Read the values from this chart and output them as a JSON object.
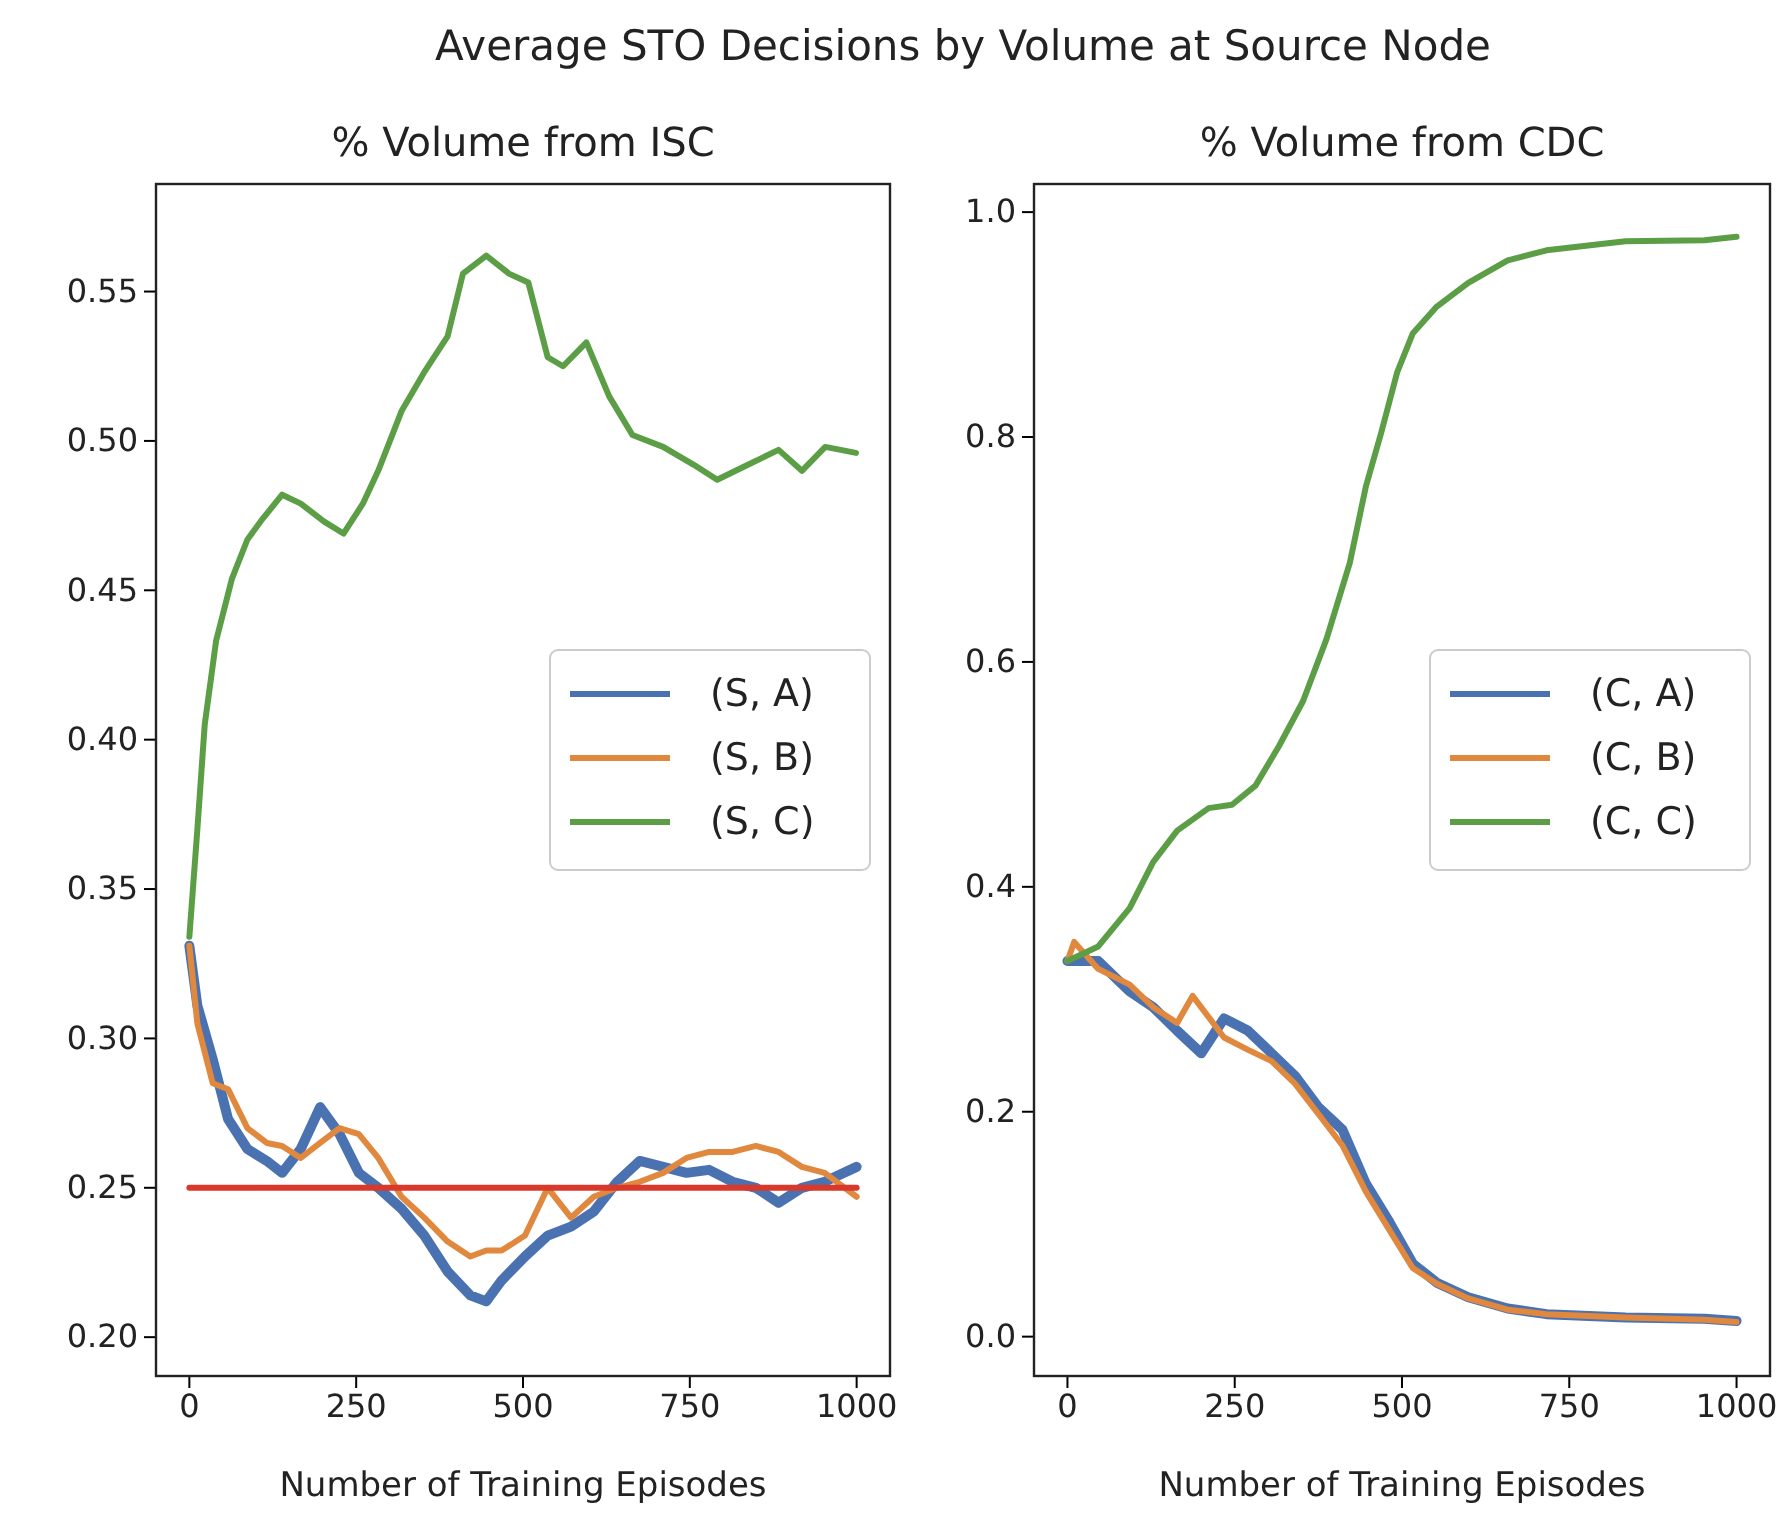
{
  "chart_data": [
    {
      "type": "line",
      "title": "% Volume from ISC",
      "xlabel": "Number of Training Episodes",
      "annotations": [
        "Average STO Decisions by Volume at Source Node"
      ],
      "legend": "right",
      "grid": false,
      "line_style": "solid",
      "marker": "none",
      "xlim": [
        -50,
        1050
      ],
      "xticks": [
        0,
        250,
        500,
        750,
        1000
      ],
      "ylim": [
        0.187,
        0.586
      ],
      "yticks": [
        {
          "value": 0.2,
          "label": "0.20"
        },
        {
          "value": 0.25,
          "label": "0.25"
        },
        {
          "value": 0.3,
          "label": "0.30"
        },
        {
          "value": 0.35,
          "label": "0.35"
        },
        {
          "value": 0.4,
          "label": "0.40"
        },
        {
          "value": 0.45,
          "label": "0.45"
        },
        {
          "value": 0.5,
          "label": "0.50"
        },
        {
          "value": 0.55,
          "label": "0.55"
        }
      ],
      "series": [
        {
          "name": "(S, A)",
          "color": "#4a72b0",
          "x": [
            0,
            12,
            35,
            58,
            87,
            116,
            139,
            167,
            196,
            225,
            254,
            283,
            318,
            352,
            387,
            421,
            445,
            468,
            503,
            537,
            572,
            606,
            641,
            675,
            710,
            745,
            779,
            814,
            849,
            883,
            918,
            952,
            1000
          ],
          "values": [
            0.331,
            0.311,
            0.293,
            0.273,
            0.263,
            0.259,
            0.255,
            0.263,
            0.277,
            0.268,
            0.255,
            0.25,
            0.243,
            0.234,
            0.222,
            0.214,
            0.212,
            0.219,
            0.227,
            0.234,
            0.237,
            0.242,
            0.252,
            0.259,
            0.257,
            0.255,
            0.256,
            0.252,
            0.25,
            0.245,
            0.25,
            0.252,
            0.257
          ]
        },
        {
          "name": "(S, B)",
          "color": "#e0883e",
          "x": [
            0,
            12,
            35,
            58,
            87,
            116,
            139,
            167,
            196,
            225,
            254,
            283,
            318,
            352,
            387,
            421,
            445,
            468,
            503,
            537,
            572,
            606,
            641,
            675,
            710,
            745,
            779,
            814,
            849,
            883,
            918,
            952,
            1000
          ],
          "values": [
            0.331,
            0.305,
            0.285,
            0.283,
            0.27,
            0.265,
            0.264,
            0.26,
            0.265,
            0.27,
            0.268,
            0.26,
            0.247,
            0.24,
            0.232,
            0.227,
            0.229,
            0.229,
            0.234,
            0.25,
            0.24,
            0.247,
            0.25,
            0.252,
            0.255,
            0.26,
            0.262,
            0.262,
            0.264,
            0.262,
            0.257,
            0.255,
            0.247
          ]
        },
        {
          "name": "(S, C)",
          "color": "#5b9e45",
          "x": [
            0,
            12,
            23,
            40,
            64,
            87,
            110,
            139,
            167,
            202,
            231,
            260,
            283,
            318,
            352,
            387,
            410,
            445,
            479,
            508,
            537,
            560,
            595,
            629,
            664,
            710,
            756,
            791,
            837,
            883,
            918,
            953,
            999
          ],
          "values": [
            0.334,
            0.37,
            0.405,
            0.433,
            0.454,
            0.467,
            0.474,
            0.482,
            0.479,
            0.473,
            0.469,
            0.479,
            0.49,
            0.51,
            0.523,
            0.535,
            0.556,
            0.562,
            0.556,
            0.553,
            0.528,
            0.525,
            0.533,
            0.515,
            0.502,
            0.498,
            0.492,
            0.487,
            0.492,
            0.497,
            0.49,
            0.498,
            0.496
          ]
        },
        {
          "color": "#d8392b",
          "x": [
            0,
            1000
          ],
          "values": [
            0.25,
            0.25
          ]
        }
      ]
    },
    {
      "type": "line",
      "title": "% Volume from CDC",
      "xlabel": "Number of Training Episodes",
      "legend": "right",
      "grid": false,
      "line_style": "solid",
      "marker": "none",
      "xlim": [
        -50,
        1050
      ],
      "xticks": [
        0,
        250,
        500,
        750,
        1000
      ],
      "ylim": [
        -0.035,
        1.025
      ],
      "yticks": [
        {
          "value": 0,
          "label": "0.0"
        },
        {
          "value": 0.2,
          "label": "0.2"
        },
        {
          "value": 0.4,
          "label": "0.4"
        },
        {
          "value": 0.6,
          "label": "0.6"
        },
        {
          "value": 0.8,
          "label": "0.8"
        },
        {
          "value": 1,
          "label": "1.0"
        }
      ],
      "series": [
        {
          "name": "(C, A)",
          "color": "#4a72b0",
          "x": [
            0,
            46,
            93,
            128,
            164,
            200,
            234,
            270,
            305,
            340,
            375,
            411,
            446,
            481,
            516,
            552,
            599,
            658,
            716,
            834,
            952,
            1000
          ],
          "values": [
            0.334,
            0.334,
            0.307,
            0.293,
            0.272,
            0.252,
            0.283,
            0.272,
            0.252,
            0.232,
            0.204,
            0.184,
            0.136,
            0.102,
            0.065,
            0.048,
            0.035,
            0.025,
            0.02,
            0.017,
            0.016,
            0.014
          ]
        },
        {
          "name": "(C, B)",
          "color": "#e0883e",
          "x": [
            0,
            10,
            46,
            93,
            128,
            164,
            187,
            234,
            270,
            305,
            340,
            375,
            411,
            446,
            481,
            516,
            552,
            599,
            658,
            716,
            834,
            952,
            1000
          ],
          "values": [
            0.334,
            0.351,
            0.327,
            0.313,
            0.293,
            0.279,
            0.303,
            0.266,
            0.255,
            0.245,
            0.225,
            0.198,
            0.17,
            0.129,
            0.095,
            0.061,
            0.047,
            0.034,
            0.024,
            0.02,
            0.017,
            0.015,
            0.013
          ]
        },
        {
          "name": "(C, C)",
          "color": "#5b9e45",
          "x": [
            0,
            46,
            93,
            128,
            164,
            211,
            246,
            281,
            316,
            352,
            387,
            422,
            446,
            469,
            493,
            516,
            552,
            599,
            658,
            716,
            834,
            952,
            1000
          ],
          "values": [
            0.334,
            0.347,
            0.381,
            0.422,
            0.45,
            0.47,
            0.473,
            0.49,
            0.525,
            0.565,
            0.62,
            0.688,
            0.756,
            0.804,
            0.858,
            0.892,
            0.916,
            0.937,
            0.957,
            0.966,
            0.974,
            0.975,
            0.978
          ]
        }
      ]
    }
  ]
}
